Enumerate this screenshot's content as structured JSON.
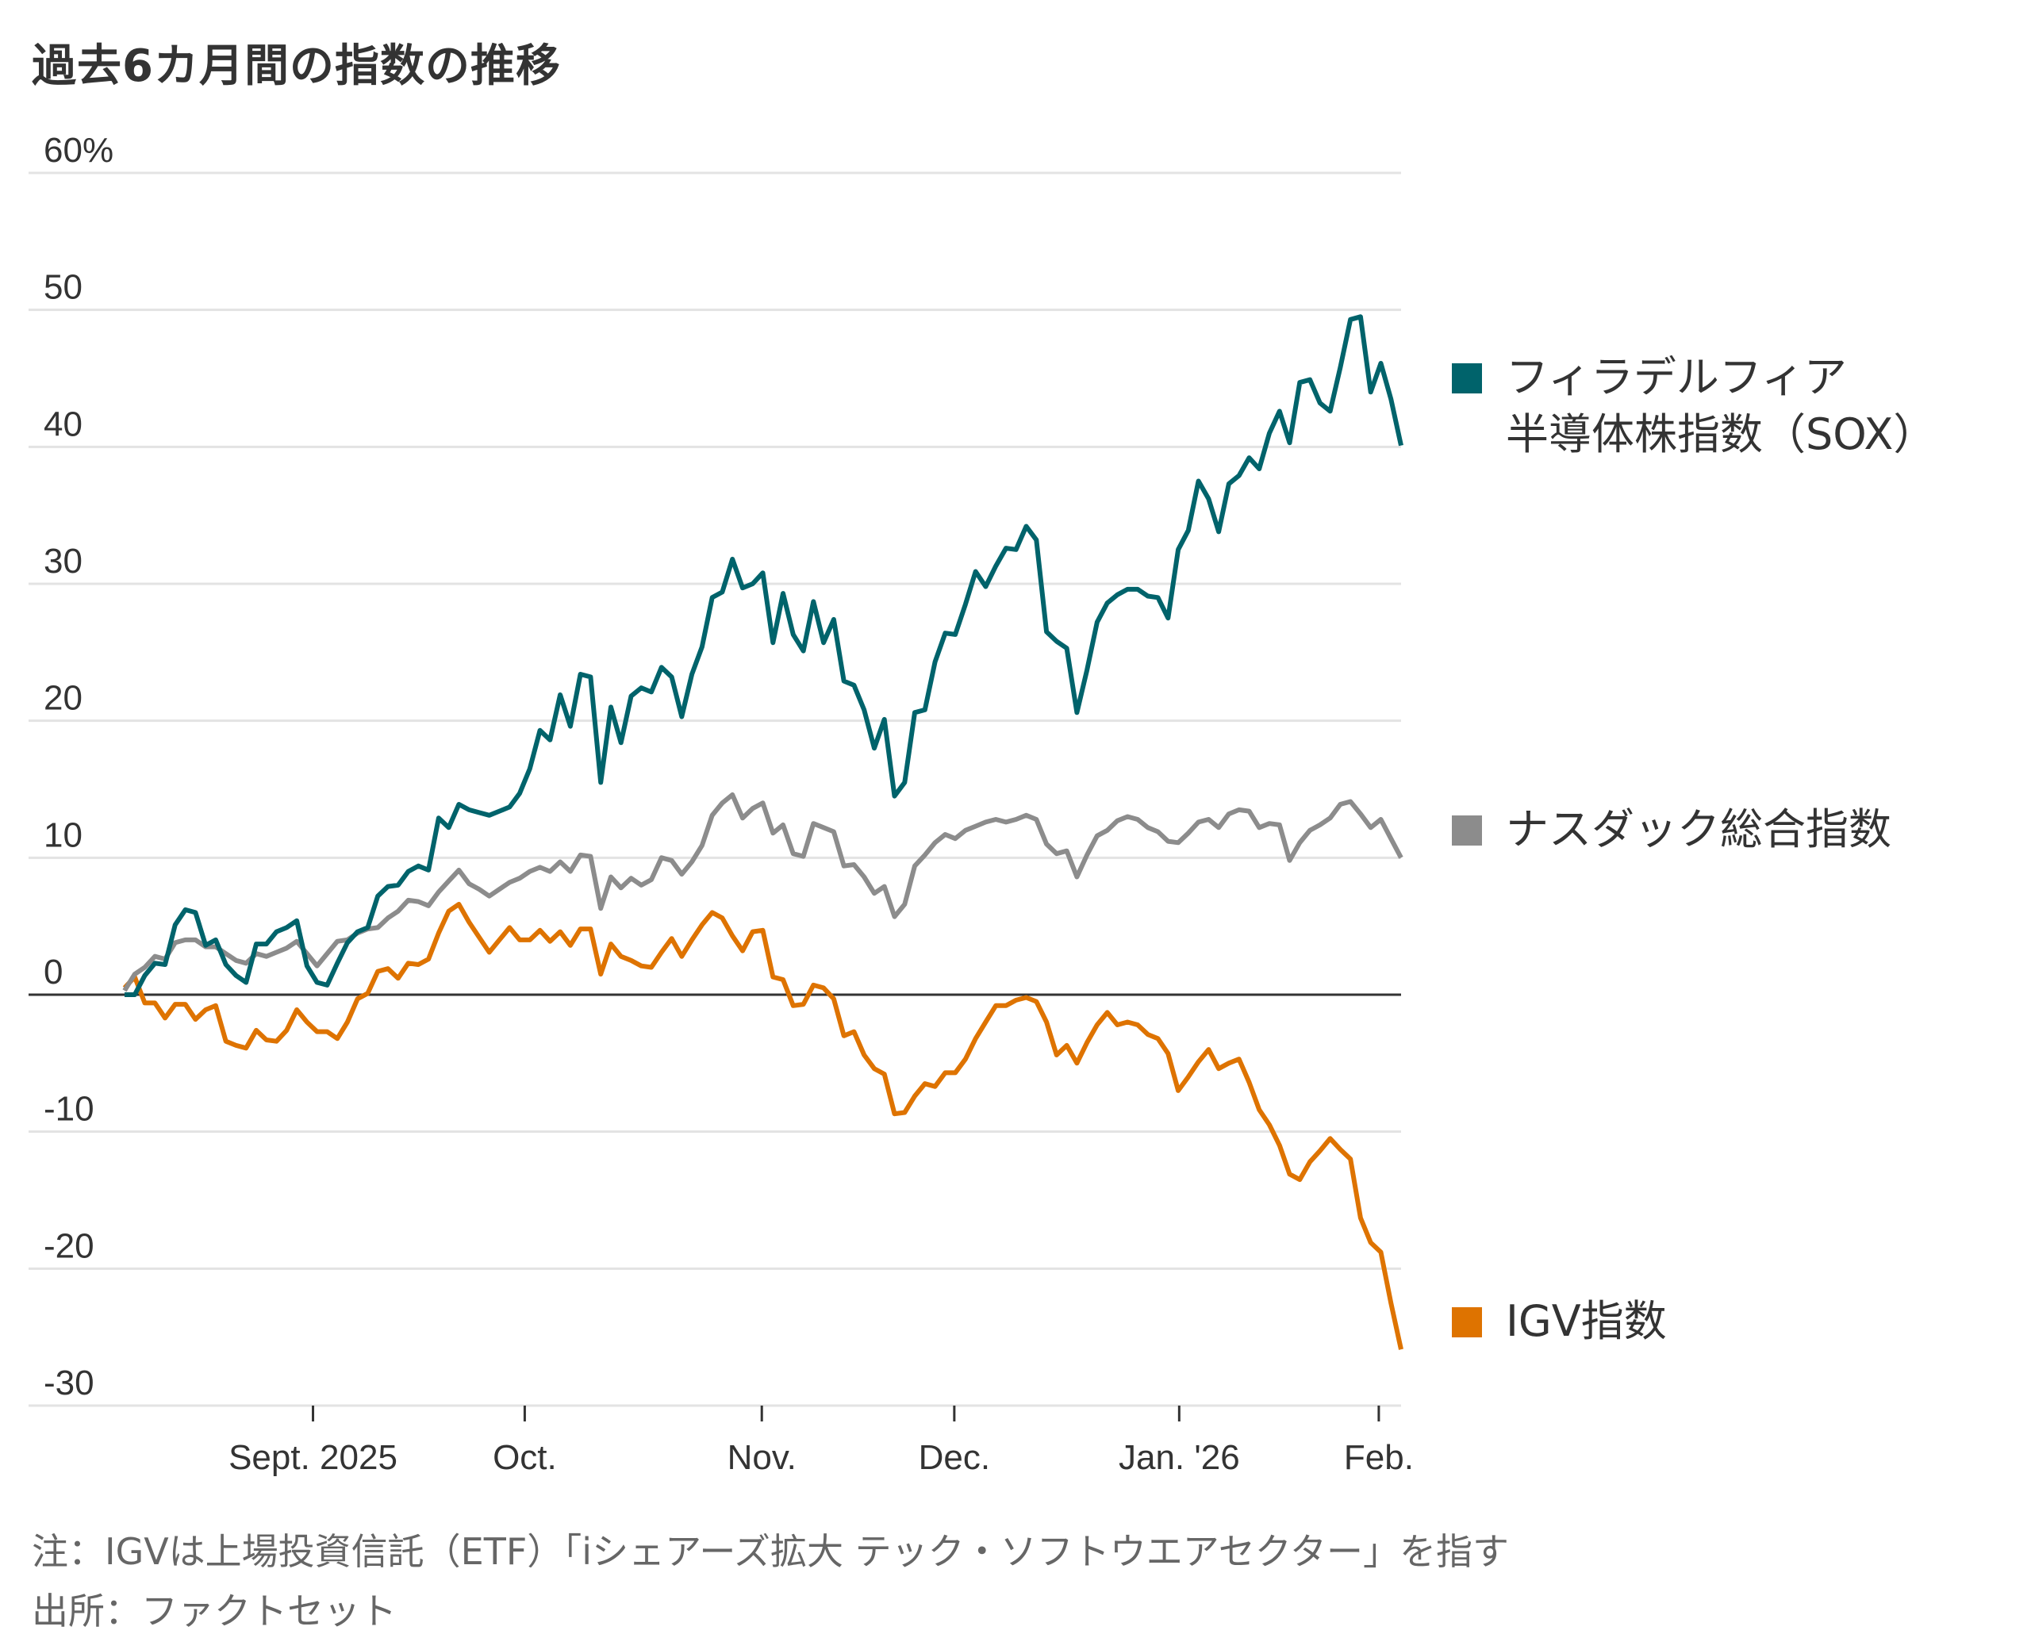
{
  "title": "過去6カ月間の指数の推移",
  "colors": {
    "sox": "#00636b",
    "nasdaq": "#8c8c8c",
    "igv": "#de7300",
    "grid": "#e3e3e3",
    "zero": "#333333"
  },
  "legend": [
    {
      "line1": "フィラデルフィア",
      "line2": "半導体株指数（SOX）",
      "color": "#00636b"
    },
    {
      "line1": "ナスダック総合指数",
      "color": "#8c8c8c"
    },
    {
      "line1": "IGV指数",
      "color": "#de7300"
    }
  ],
  "footnotes": {
    "note": "注：IGVは上場投資信託（ETF）「iシェアーズ拡大 テック・ソフトウエアセクター」を指す",
    "source": "出所：ファクトセット"
  },
  "chart_data": {
    "type": "line",
    "title": "過去6カ月間の指数の推移",
    "xlabel": "",
    "ylabel": "",
    "ylim": [
      -30,
      60
    ],
    "yticks": [
      60,
      50,
      40,
      30,
      20,
      10,
      0,
      -10,
      -20,
      -30
    ],
    "ytick_labels": [
      "60%",
      "50",
      "40",
      "30",
      "20",
      "10",
      "0",
      "-10",
      "-20",
      "-30"
    ],
    "x_range": [
      0,
      126
    ],
    "xticks": [
      {
        "label": "Sept. 2025",
        "at": 18.6
      },
      {
        "label": "Oct.",
        "at": 39.5
      },
      {
        "label": "Nov.",
        "at": 62.9
      },
      {
        "label": "Dec.",
        "at": 81.9
      },
      {
        "label": "Jan. '26",
        "at": 104.1
      },
      {
        "label": "Feb.",
        "at": 123.8
      }
    ],
    "grid": true,
    "legend_position": "right",
    "series": [
      {
        "name": "フィラデルフィア半導体株指数（SOX）",
        "key": "sox",
        "values": [
          0.0,
          0.0,
          1.4,
          2.3,
          2.2,
          5.1,
          6.2,
          6.0,
          3.6,
          4.0,
          2.2,
          1.4,
          0.9,
          3.7,
          3.7,
          4.6,
          4.9,
          5.4,
          2.1,
          0.9,
          0.7,
          2.3,
          3.8,
          4.6,
          4.9,
          7.2,
          7.9,
          8.0,
          9.0,
          9.4,
          9.1,
          12.9,
          12.2,
          13.9,
          13.5,
          13.3,
          13.1,
          13.4,
          13.7,
          14.7,
          16.5,
          19.3,
          18.6,
          21.9,
          19.6,
          23.4,
          23.2,
          15.5,
          21.0,
          18.4,
          21.8,
          22.4,
          22.1,
          23.9,
          23.2,
          20.3,
          23.4,
          25.4,
          29.0,
          29.4,
          31.8,
          29.7,
          30.0,
          30.8,
          25.7,
          29.3,
          26.3,
          25.1,
          28.7,
          25.7,
          27.4,
          22.9,
          22.6,
          20.8,
          18.0,
          20.1,
          14.5,
          15.5,
          20.6,
          20.8,
          24.3,
          26.4,
          26.3,
          28.5,
          30.9,
          29.8,
          31.3,
          32.6,
          32.5,
          34.2,
          33.2,
          26.5,
          25.8,
          25.3,
          20.6,
          23.7,
          27.2,
          28.6,
          29.2,
          29.6,
          29.6,
          29.1,
          29.0,
          27.5,
          32.5,
          33.9,
          37.5,
          36.2,
          33.8,
          37.3,
          37.9,
          39.2,
          38.4,
          41.0,
          42.6,
          40.3,
          44.7,
          44.9,
          43.2,
          42.6,
          45.8,
          49.3,
          49.5,
          44.0,
          46.1,
          43.5,
          40.1
        ]
      },
      {
        "name": "ナスダック総合指数",
        "key": "nasdaq",
        "values": [
          0.3,
          1.5,
          2.0,
          2.8,
          2.6,
          3.8,
          4.0,
          4.0,
          3.5,
          3.5,
          3.0,
          2.5,
          2.3,
          3.0,
          2.8,
          3.1,
          3.4,
          3.9,
          3.0,
          2.1,
          3.0,
          3.9,
          4.0,
          4.5,
          4.8,
          4.9,
          5.6,
          6.1,
          6.9,
          6.8,
          6.5,
          7.5,
          8.3,
          9.1,
          8.1,
          7.7,
          7.2,
          7.7,
          8.2,
          8.5,
          9.0,
          9.3,
          9.0,
          9.7,
          9.0,
          10.2,
          10.1,
          6.3,
          8.6,
          7.8,
          8.5,
          8.0,
          8.4,
          10.0,
          9.8,
          8.8,
          9.7,
          10.9,
          13.1,
          14.0,
          14.6,
          12.9,
          13.6,
          14.0,
          11.8,
          12.4,
          10.3,
          10.1,
          12.5,
          12.2,
          11.9,
          9.4,
          9.5,
          8.6,
          7.4,
          7.9,
          5.7,
          6.6,
          9.4,
          10.2,
          11.1,
          11.7,
          11.4,
          12.0,
          12.3,
          12.6,
          12.8,
          12.6,
          12.8,
          13.1,
          12.8,
          11.0,
          10.3,
          10.5,
          8.6,
          10.2,
          11.6,
          12.0,
          12.7,
          13.0,
          12.8,
          12.2,
          11.9,
          11.2,
          11.1,
          11.8,
          12.6,
          12.8,
          12.2,
          13.2,
          13.5,
          13.4,
          12.2,
          12.5,
          12.4,
          9.8,
          11.1,
          12.0,
          12.4,
          12.9,
          13.9,
          14.1,
          13.2,
          12.2,
          12.8,
          11.4,
          10.0
        ]
      },
      {
        "name": "IGV指数",
        "key": "igv",
        "values": [
          0.5,
          1.3,
          -0.6,
          -0.6,
          -1.7,
          -0.7,
          -0.7,
          -1.8,
          -1.1,
          -0.8,
          -3.4,
          -3.7,
          -3.9,
          -2.6,
          -3.3,
          -3.4,
          -2.6,
          -1.1,
          -2.0,
          -2.7,
          -2.7,
          -3.2,
          -2.0,
          -0.3,
          0.1,
          1.7,
          1.9,
          1.2,
          2.3,
          2.2,
          2.6,
          4.5,
          6.1,
          6.6,
          5.3,
          4.2,
          3.1,
          4.0,
          4.9,
          4.0,
          4.0,
          4.7,
          3.9,
          4.6,
          3.6,
          4.8,
          4.8,
          1.5,
          3.7,
          2.8,
          2.5,
          2.1,
          2.0,
          3.1,
          4.1,
          2.8,
          4.0,
          5.1,
          6.0,
          5.6,
          4.3,
          3.2,
          4.6,
          4.7,
          1.3,
          1.1,
          -0.8,
          -0.7,
          0.7,
          0.5,
          -0.3,
          -3.0,
          -2.7,
          -4.4,
          -5.4,
          -5.8,
          -8.7,
          -8.6,
          -7.4,
          -6.5,
          -6.7,
          -5.7,
          -5.7,
          -4.7,
          -3.2,
          -2.0,
          -0.8,
          -0.8,
          -0.4,
          -0.2,
          -0.5,
          -2.0,
          -4.4,
          -3.7,
          -5.0,
          -3.5,
          -2.2,
          -1.3,
          -2.2,
          -2.0,
          -2.2,
          -2.9,
          -3.2,
          -4.3,
          -7.0,
          -6.0,
          -4.9,
          -4.0,
          -5.4,
          -5.0,
          -4.7,
          -6.4,
          -8.4,
          -9.5,
          -11.0,
          -13.1,
          -13.5,
          -12.2,
          -11.4,
          -10.5,
          -11.3,
          -12.0,
          -16.3,
          -18.1,
          -18.8,
          -22.5,
          -25.9
        ]
      }
    ]
  }
}
